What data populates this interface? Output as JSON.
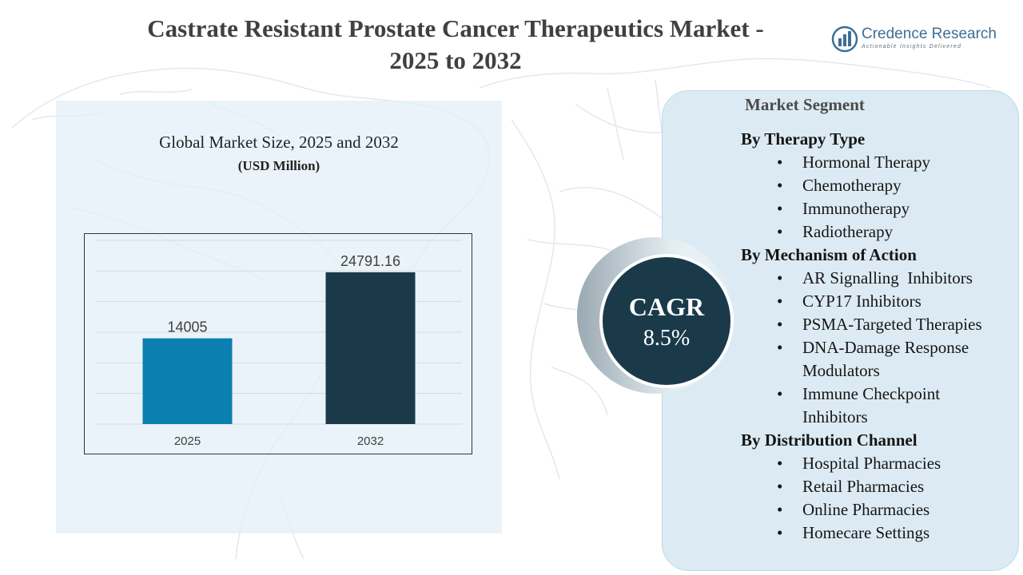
{
  "title": "Castrate Resistant Prostate Cancer Therapeutics Market - 2025 to 2032",
  "brand": {
    "name": "Credence Research",
    "tagline": "Actionable Insights Delivered",
    "icon": "bar-chart-logo-icon"
  },
  "chart_heading": "Global Market Size, 2025 and 2032",
  "chart_unit": "(USD Million)",
  "chart_data": {
    "type": "bar",
    "categories": [
      "2025",
      "2032"
    ],
    "values": [
      14005,
      24791.16
    ],
    "value_labels": [
      "14005",
      "24791.16"
    ],
    "title": "Global Market Size, 2025 and 2032",
    "ylabel": "",
    "xlabel": "",
    "ylim": [
      0,
      30000
    ],
    "grid": true,
    "colors": [
      "#0a7fb0",
      "#1a3a4a"
    ]
  },
  "cagr": {
    "label": "CAGR",
    "value": "8.5%"
  },
  "segments": {
    "heading": "Market Segment",
    "groups": [
      {
        "category": "By Therapy Type",
        "items": [
          "Hormonal Therapy",
          "Chemotherapy",
          "Immunotherapy",
          "Radiotherapy"
        ]
      },
      {
        "category": "By Mechanism of Action",
        "items": [
          "AR Signalling  Inhibitors",
          "CYP17 Inhibitors",
          "PSMA-Targeted Therapies",
          "DNA-Damage Response Modulators",
          "Immune Checkpoint Inhibitors"
        ]
      },
      {
        "category": "By Distribution Channel",
        "items": [
          "Hospital Pharmacies",
          "Retail Pharmacies",
          "Online Pharmacies",
          "Homecare Settings"
        ]
      }
    ]
  },
  "colors": {
    "dark_teal": "#1a3a4a",
    "accent_blue": "#0a7fb0",
    "panel_light": "#dcebf3"
  }
}
